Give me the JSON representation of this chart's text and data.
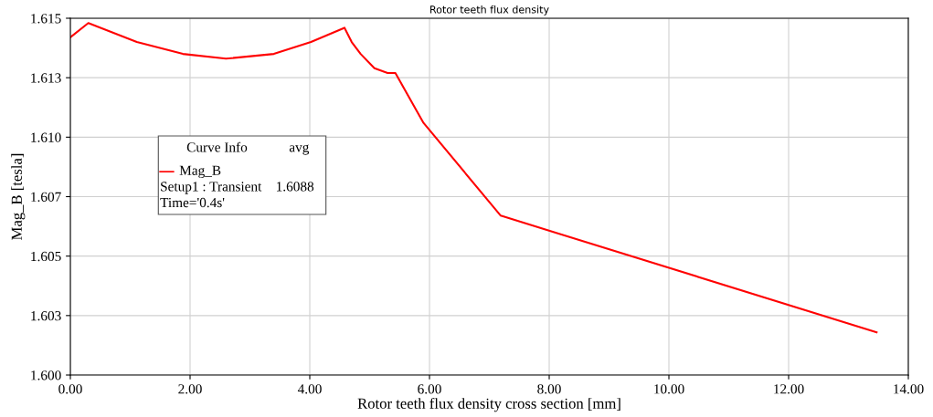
{
  "chart_data": {
    "type": "line",
    "title": "Rotor teeth flux density",
    "xlabel": "Rotor teeth flux density cross section [mm]",
    "ylabel": "Mag_B [tesla]",
    "x": [
      0,
      0.3,
      1.11,
      1.88,
      2.6,
      3.4,
      4.02,
      4.58,
      4.7,
      4.85,
      5.08,
      5.3,
      5.43,
      5.9,
      7.19,
      13.47
    ],
    "series": [
      {
        "name": "Mag_B",
        "color": "#ff0000",
        "values": [
          1.6142,
          1.6148,
          1.614,
          1.6135,
          1.6133,
          1.6135,
          1.614,
          1.6146,
          1.614,
          1.6135,
          1.6129,
          1.6127,
          1.6127,
          1.6106,
          1.6067,
          1.6018
        ]
      }
    ],
    "xlim": [
      0,
      14
    ],
    "xticks": [
      {
        "value": 0,
        "label": "0.00"
      },
      {
        "value": 2,
        "label": "2.00"
      },
      {
        "value": 4,
        "label": "4.00"
      },
      {
        "value": 6,
        "label": "6.00"
      },
      {
        "value": 8,
        "label": "8.00"
      },
      {
        "value": 10,
        "label": "10.00"
      },
      {
        "value": 12,
        "label": "12.00"
      },
      {
        "value": 14,
        "label": "14.00"
      }
    ],
    "ylim": [
      1.6,
      1.615
    ],
    "yticks": [
      {
        "value": 1.6,
        "label": "1.600"
      },
      {
        "value": 1.6025,
        "label": "1.603"
      },
      {
        "value": 1.605,
        "label": "1.605"
      },
      {
        "value": 1.6075,
        "label": "1.607"
      },
      {
        "value": 1.61,
        "label": "1.610"
      },
      {
        "value": 1.6125,
        "label": "1.613"
      },
      {
        "value": 1.615,
        "label": "1.615"
      }
    ],
    "grid": true,
    "legend": "left",
    "annotations": [
      "Curve Info",
      "avg",
      "Setup1 : Transient",
      "1.6088",
      "Time='0.4s'"
    ]
  }
}
